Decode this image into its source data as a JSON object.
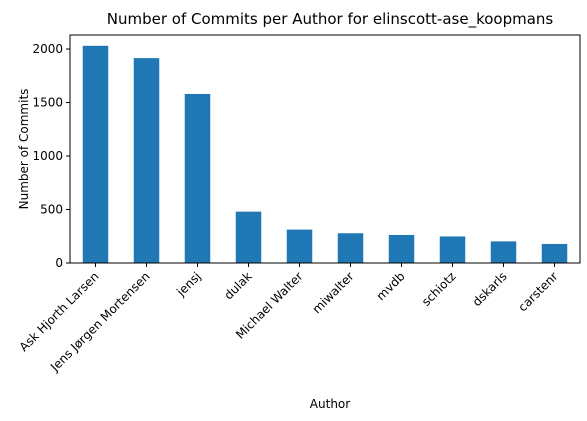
{
  "chart_data": {
    "type": "bar",
    "title": "Number of Commits per Author for elinscott-ase_koopmans",
    "xlabel": "Author",
    "ylabel": "Number of Commits",
    "categories": [
      "Ask Hjorth Larsen",
      "Jens Jørgen Mortensen",
      "jensj",
      "dulak",
      "Michael Walter",
      "miwalter",
      "mvdb",
      "schiotz",
      "dskarls",
      "carstenr"
    ],
    "values": [
      2030,
      1915,
      1580,
      480,
      312,
      278,
      262,
      248,
      202,
      178
    ],
    "yticks": [
      0,
      500,
      1000,
      1500,
      2000
    ],
    "ylim": [
      0,
      2131
    ],
    "grid": false,
    "legend": "none",
    "colors": {
      "bar": "#1f77b4",
      "axis": "#000000"
    }
  }
}
